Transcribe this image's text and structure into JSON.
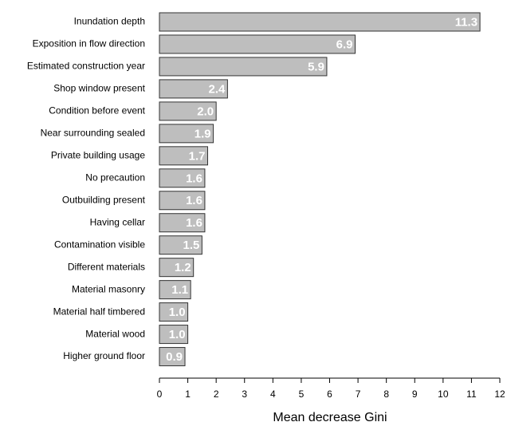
{
  "chart_data": {
    "type": "barh",
    "xlabel": "Mean decrease Gini",
    "categories": [
      "Inundation depth",
      "Exposition in flow direction",
      "Estimated construction year",
      "Shop window present",
      "Condition before event",
      "Near surrounding sealed",
      "Private building usage",
      "No precaution",
      "Outbuilding present",
      "Having cellar",
      "Contamination visible",
      "Different materials",
      "Material masonry",
      "Material half timbered",
      "Material wood",
      "Higher ground floor"
    ],
    "values": [
      11.3,
      6.9,
      5.9,
      2.4,
      2.0,
      1.9,
      1.7,
      1.6,
      1.6,
      1.6,
      1.5,
      1.2,
      1.1,
      1.0,
      1.0,
      0.9
    ],
    "value_labels": [
      "11.3",
      "6.9",
      "5.9",
      "2.4",
      "2.0",
      "1.9",
      "1.7",
      "1.6",
      "1.6",
      "1.6",
      "1.5",
      "1.2",
      "1.1",
      "1.0",
      "1.0",
      "0.9"
    ],
    "color": "#bebebe",
    "xlim": [
      0,
      12
    ],
    "xticks": [
      0,
      1,
      2,
      3,
      4,
      5,
      6,
      7,
      8,
      9,
      10,
      11,
      12
    ]
  }
}
